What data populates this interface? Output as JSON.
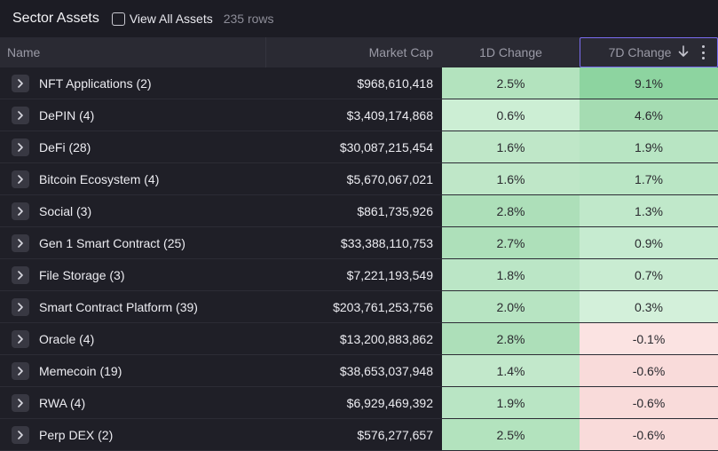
{
  "header": {
    "title": "Sector Assets",
    "view_all_label": "View All Assets",
    "rows_count": "235 rows"
  },
  "columns": {
    "name": "Name",
    "market_cap": "Market Cap",
    "change_1d": "1D Change",
    "change_7d": "7D Change"
  },
  "rows": [
    {
      "name": "NFT Applications (2)",
      "market_cap": "$968,610,418",
      "change_1d": "2.5%",
      "change_7d": "9.1%",
      "bg_1d": "#b3e3be",
      "bg_7d": "#8dd4a0"
    },
    {
      "name": "DePIN (4)",
      "market_cap": "$3,409,174,868",
      "change_1d": "0.6%",
      "change_7d": "4.6%",
      "bg_1d": "#cceed4",
      "bg_7d": "#a5dcb2"
    },
    {
      "name": "DeFi (28)",
      "market_cap": "$30,087,215,454",
      "change_1d": "1.6%",
      "change_7d": "1.9%",
      "bg_1d": "#bfe7c8",
      "bg_7d": "#b8e5c3"
    },
    {
      "name": "Bitcoin Ecosystem (4)",
      "market_cap": "$5,670,067,021",
      "change_1d": "1.6%",
      "change_7d": "1.7%",
      "bg_1d": "#bfe7c8",
      "bg_7d": "#bae6c5"
    },
    {
      "name": "Social (3)",
      "market_cap": "$861,735,926",
      "change_1d": "2.8%",
      "change_7d": "1.3%",
      "bg_1d": "#addfb9",
      "bg_7d": "#c0e8ca"
    },
    {
      "name": "Gen 1 Smart Contract (25)",
      "market_cap": "$33,388,110,753",
      "change_1d": "2.7%",
      "change_7d": "0.9%",
      "bg_1d": "#aee0ba",
      "bg_7d": "#c6ebd0"
    },
    {
      "name": "File Storage (3)",
      "market_cap": "$7,221,193,549",
      "change_1d": "1.8%",
      "change_7d": "0.7%",
      "bg_1d": "#bbe6c6",
      "bg_7d": "#c9ecd2"
    },
    {
      "name": "Smart Contract Platform (39)",
      "market_cap": "$203,761,253,756",
      "change_1d": "2.0%",
      "change_7d": "0.3%",
      "bg_1d": "#b7e4c2",
      "bg_7d": "#d3f0da"
    },
    {
      "name": "Oracle (4)",
      "market_cap": "$13,200,883,862",
      "change_1d": "2.8%",
      "change_7d": "-0.1%",
      "bg_1d": "#addfb9",
      "bg_7d": "#fbe3e2"
    },
    {
      "name": "Memecoin (19)",
      "market_cap": "$38,653,037,948",
      "change_1d": "1.4%",
      "change_7d": "-0.6%",
      "bg_1d": "#c2e8cb",
      "bg_7d": "#f9dbda"
    },
    {
      "name": "RWA (4)",
      "market_cap": "$6,929,469,392",
      "change_1d": "1.9%",
      "change_7d": "-0.6%",
      "bg_1d": "#b9e5c4",
      "bg_7d": "#f9dbda"
    },
    {
      "name": "Perp DEX (2)",
      "market_cap": "$576,277,657",
      "change_1d": "2.5%",
      "change_7d": "-0.6%",
      "bg_1d": "#b3e3be",
      "bg_7d": "#f9dbda"
    }
  ],
  "icons": {
    "expand": "chevron-right-icon",
    "sort": "arrow-down-icon",
    "menu": "more-vertical-icon"
  },
  "colors": {
    "background": "#1c1c24",
    "header_bg": "#2a2a33",
    "sort_border": "#7a6cf0"
  }
}
